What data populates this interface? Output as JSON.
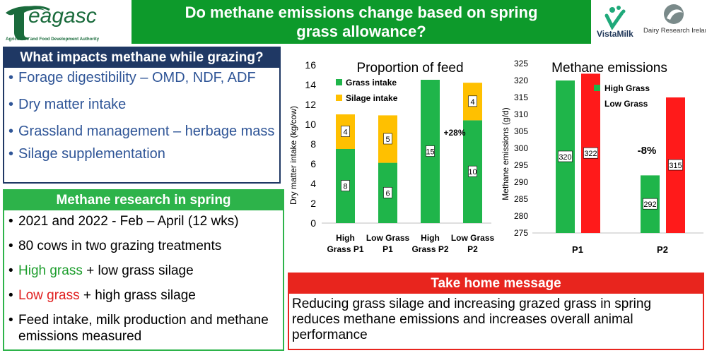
{
  "header": {
    "title": "Do methane emissions change based on spring\ngrass allowance?",
    "teagasc_logo_text": "eagasc",
    "teagasc_tagline": "Agriculture and Food Development Authority",
    "vistamilk_logo_text": "VistaMilk",
    "dri_logo_text": "Dairy Research Ireland"
  },
  "impacts": {
    "heading": "What impacts methane while grazing?",
    "items": [
      "Forage digestibility – OMD, NDF, ADF",
      "Dry matter intake",
      "Grassland management – herbage mass",
      "Silage supplementation"
    ]
  },
  "research": {
    "heading": "Methane research in spring",
    "item1": "2021 and 2022 - Feb – April (12 wks)",
    "item2": "80 cows in two grazing treatments",
    "item3_lead": "High grass",
    "item3_rest": " + low grass silage",
    "item4_lead": "Low grass",
    "item4_rest": " + high grass silage",
    "item5": "Feed intake, milk production and methane emissions measured"
  },
  "takehome": {
    "heading": "Take home message",
    "body": "Reducing grass silage and increasing grazed grass in spring reduces methane emissions and increases overall animal performance"
  },
  "colors": {
    "grass": "#1fb54a",
    "silage": "#ffc000",
    "low_grass": "#ff1a1a"
  },
  "chart_data": [
    {
      "type": "bar",
      "stacked": true,
      "title": "Proportion of feed",
      "ylabel": "Dry matter intake (kg/cow)",
      "ylim": [
        0,
        16
      ],
      "yticks": [
        "0",
        "2",
        "4",
        "6",
        "8",
        "10",
        "12",
        "14",
        "16"
      ],
      "categories": [
        "High Grass P1",
        "Low Grass P1",
        "High Grass P2",
        "Low Grass P2"
      ],
      "category_lines": [
        [
          "High",
          "Grass P1"
        ],
        [
          "Low Grass",
          "P1"
        ],
        [
          "High",
          "Grass P2"
        ],
        [
          "Low Grass",
          "P2"
        ]
      ],
      "series": [
        {
          "name": "Grass intake",
          "values": [
            7.5,
            6.1,
            14.5,
            10.4
          ],
          "labels": [
            "8",
            "6",
            "15",
            "10"
          ]
        },
        {
          "name": "Silage intake",
          "values": [
            3.5,
            4.8,
            0,
            3.8
          ],
          "labels": [
            "4",
            "5",
            "",
            "4"
          ]
        }
      ],
      "annotation": "+28%",
      "legend": "top-left"
    },
    {
      "type": "bar",
      "title": "Methane emissions",
      "ylabel": "Methane emissions (g/d)",
      "ylim": [
        275,
        325
      ],
      "yticks": [
        "275",
        "280",
        "285",
        "290",
        "295",
        "300",
        "305",
        "310",
        "315",
        "320",
        "325"
      ],
      "categories": [
        "P1",
        "P2"
      ],
      "series": [
        {
          "name": "High Grass",
          "values": [
            320,
            292
          ],
          "labels": [
            "320",
            "292"
          ]
        },
        {
          "name": "Low Grass",
          "values": [
            322,
            315
          ],
          "labels": [
            "322",
            "315"
          ]
        }
      ],
      "annotation": "-8%",
      "legend": "top-right"
    }
  ]
}
